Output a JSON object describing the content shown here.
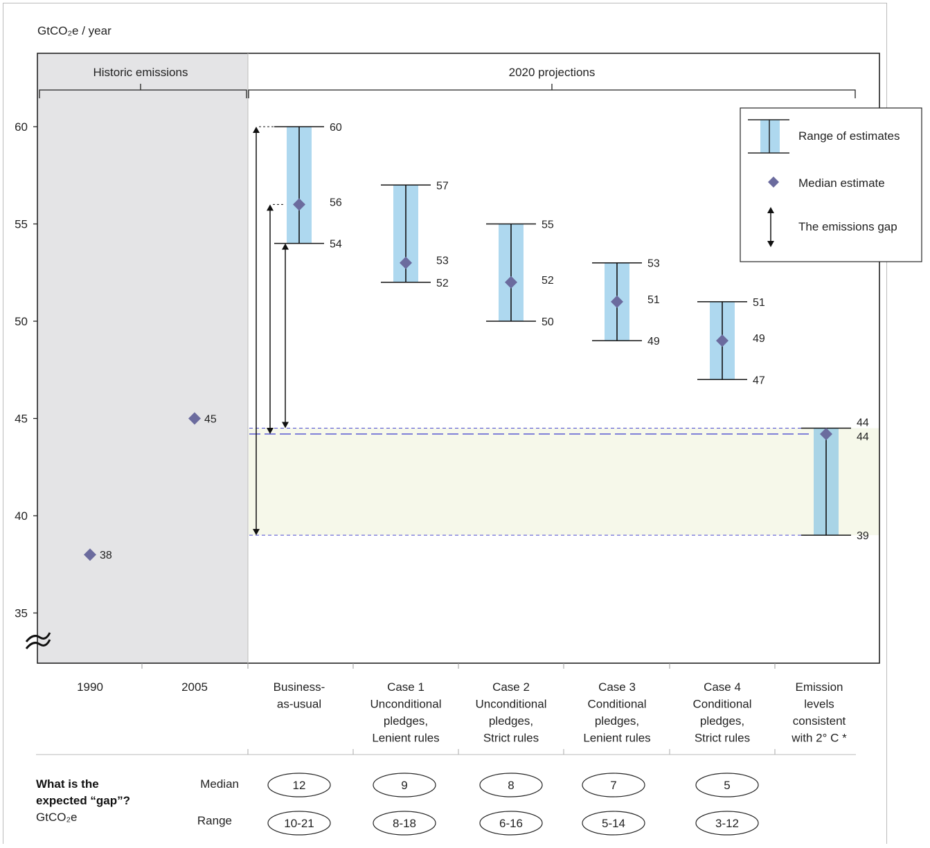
{
  "y_unit_label": "GtCO₂e / year",
  "sections": {
    "historic": "Historic emissions",
    "projections": "2020 projections"
  },
  "legend": {
    "range": "Range of estimates",
    "median": "Median estimate",
    "gap": "The emissions gap"
  },
  "colors": {
    "range_fill": "#aed8ef",
    "range_fill_dark": "#a9d4e6",
    "marker": "#6b6b9e",
    "historic_bg": "#e4e4e6",
    "gap_zone": "#f6f8ea",
    "dash_line": "#4a4ad0"
  },
  "chart_data": {
    "type": "range-chart",
    "ylabel": "GtCO₂e / year",
    "ylim": [
      33,
      64
    ],
    "y_ticks": [
      35,
      40,
      45,
      50,
      55,
      60
    ],
    "axis_break": true,
    "historic": [
      {
        "year": "1990",
        "value": 38,
        "label": "38"
      },
      {
        "year": "2005",
        "value": 45,
        "label": "45"
      }
    ],
    "scenarios": [
      {
        "label_lines": [
          "Business-",
          "as-usual"
        ],
        "low": 54,
        "median": 56,
        "high": 60,
        "low_label": "54",
        "median_label": "56",
        "high_label": "60"
      },
      {
        "label_lines": [
          "Case 1",
          "Unconditional",
          "pledges,",
          "Lenient rules"
        ],
        "low": 52,
        "median": 53,
        "high": 57,
        "low_label": "52",
        "median_label": "53",
        "high_label": "57"
      },
      {
        "label_lines": [
          "Case 2",
          "Unconditional",
          "pledges,",
          "Strict rules"
        ],
        "low": 50,
        "median": 52,
        "high": 55,
        "low_label": "50",
        "median_label": "52",
        "high_label": "55"
      },
      {
        "label_lines": [
          "Case 3",
          "Conditional",
          "pledges,",
          "Lenient rules"
        ],
        "low": 49,
        "median": 51,
        "high": 53,
        "low_label": "49",
        "median_label": "51",
        "high_label": "53"
      },
      {
        "label_lines": [
          "Case 4",
          "Conditional",
          "pledges,",
          "Strict rules"
        ],
        "low": 47,
        "median": 49,
        "high": 51,
        "low_label": "47",
        "median_label": "49",
        "high_label": "51"
      }
    ],
    "target": {
      "label_lines": [
        "Emission",
        "levels",
        "consistent",
        "with 2° C *"
      ],
      "low": 39,
      "median": 44.2,
      "high": 44.5,
      "low_label": "39",
      "median_label": "44",
      "high_label": "44"
    },
    "gap_arrows": [
      {
        "from": 60,
        "to": 39
      },
      {
        "from": 56,
        "to": 44.2
      },
      {
        "from": 54,
        "to": 44.5
      }
    ],
    "gap_table": {
      "question_line1": "What is the",
      "question_line2": "expected “gap”?",
      "unit": "GtCO₂e",
      "median_label": "Median",
      "range_label": "Range",
      "median": [
        "12",
        "9",
        "8",
        "7",
        "5"
      ],
      "range": [
        "10-21",
        "8-18",
        "6-16",
        "5-14",
        "3-12"
      ]
    }
  }
}
